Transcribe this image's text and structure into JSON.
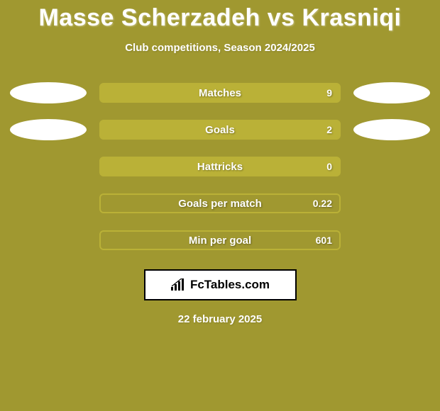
{
  "colors": {
    "page_bg": "#a09830",
    "title": "#ffffff",
    "subtitle": "#ffffff",
    "ellipse": "#ffffff",
    "bar_filled_bg": "#bab137",
    "bar_filled_border": "#bab137",
    "bar_bordered_bg": "transparent",
    "bar_bordered_border": "#bab137",
    "bar_text": "#ffffff",
    "logo_bg": "#ffffff",
    "logo_border": "#000000",
    "logo_text": "#000000",
    "person_empty_bg": "#ffffff",
    "person_empty_border": "#cccccc"
  },
  "title": "Masse Scherzadeh vs Krasniqi",
  "subtitle": "Club competitions, Season 2024/2025",
  "stats": [
    {
      "label": "Matches",
      "value": "9",
      "style": "filled",
      "left": "ellipse",
      "right": "ellipse"
    },
    {
      "label": "Goals",
      "value": "2",
      "style": "filled",
      "left": "ellipse",
      "right": "ellipse"
    },
    {
      "label": "Hattricks",
      "value": "0",
      "style": "filled",
      "left": "none",
      "right": "none"
    },
    {
      "label": "Goals per match",
      "value": "0.22",
      "style": "bordered",
      "left": "none",
      "right": "none"
    },
    {
      "label": "Min per goal",
      "value": "601",
      "style": "bordered",
      "left": "none",
      "right": "none"
    }
  ],
  "logo": {
    "text": "FcTables.com"
  },
  "date": "22 february 2025",
  "fonts": {
    "title_size": 34,
    "subtitle_size": 15,
    "bar_label_size": 15,
    "bar_value_size": 14,
    "logo_size": 17,
    "date_size": 15
  }
}
